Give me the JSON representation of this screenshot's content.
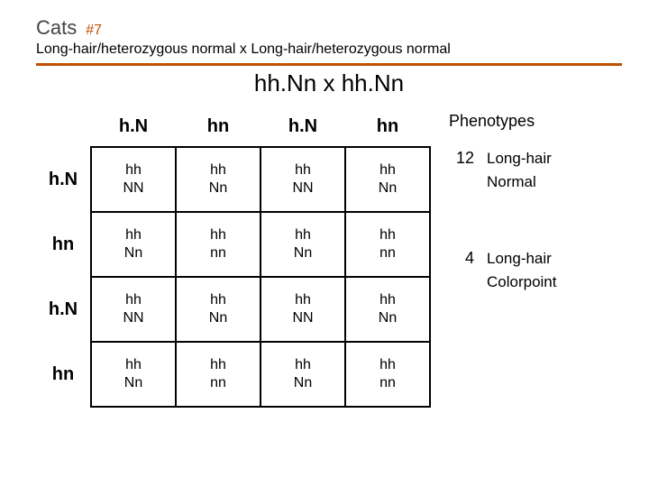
{
  "accent_color": "#c05000",
  "title": {
    "main": "Cats",
    "number": "#7"
  },
  "subtitle": "Long-hair/heterozygous normal x Long-hair/heterozygous normal",
  "cross": "hh.Nn x hh.Nn",
  "punnett": {
    "col_headers": [
      "h.N",
      "hn",
      "h.N",
      "hn"
    ],
    "row_headers": [
      "h.N",
      "hn",
      "h.N",
      "hn"
    ],
    "cells": [
      [
        "hh\nNN",
        "hh\nNn",
        "hh\nNN",
        "hh\nNn"
      ],
      [
        "hh\nNn",
        "hh\nnn",
        "hh\nNn",
        "hh\nnn"
      ],
      [
        "hh\nNN",
        "hh\nNn",
        "hh\nNN",
        "hh\nNn"
      ],
      [
        "hh\nNn",
        "hh\nnn",
        "hh\nNn",
        "hh\nnn"
      ]
    ]
  },
  "phenotypes": {
    "title": "Phenotypes",
    "entries": [
      {
        "count": "12",
        "lines": [
          "Long-hair",
          "Normal"
        ]
      },
      {
        "count": "4",
        "lines": [
          "Long-hair",
          "Colorpoint"
        ]
      }
    ]
  }
}
